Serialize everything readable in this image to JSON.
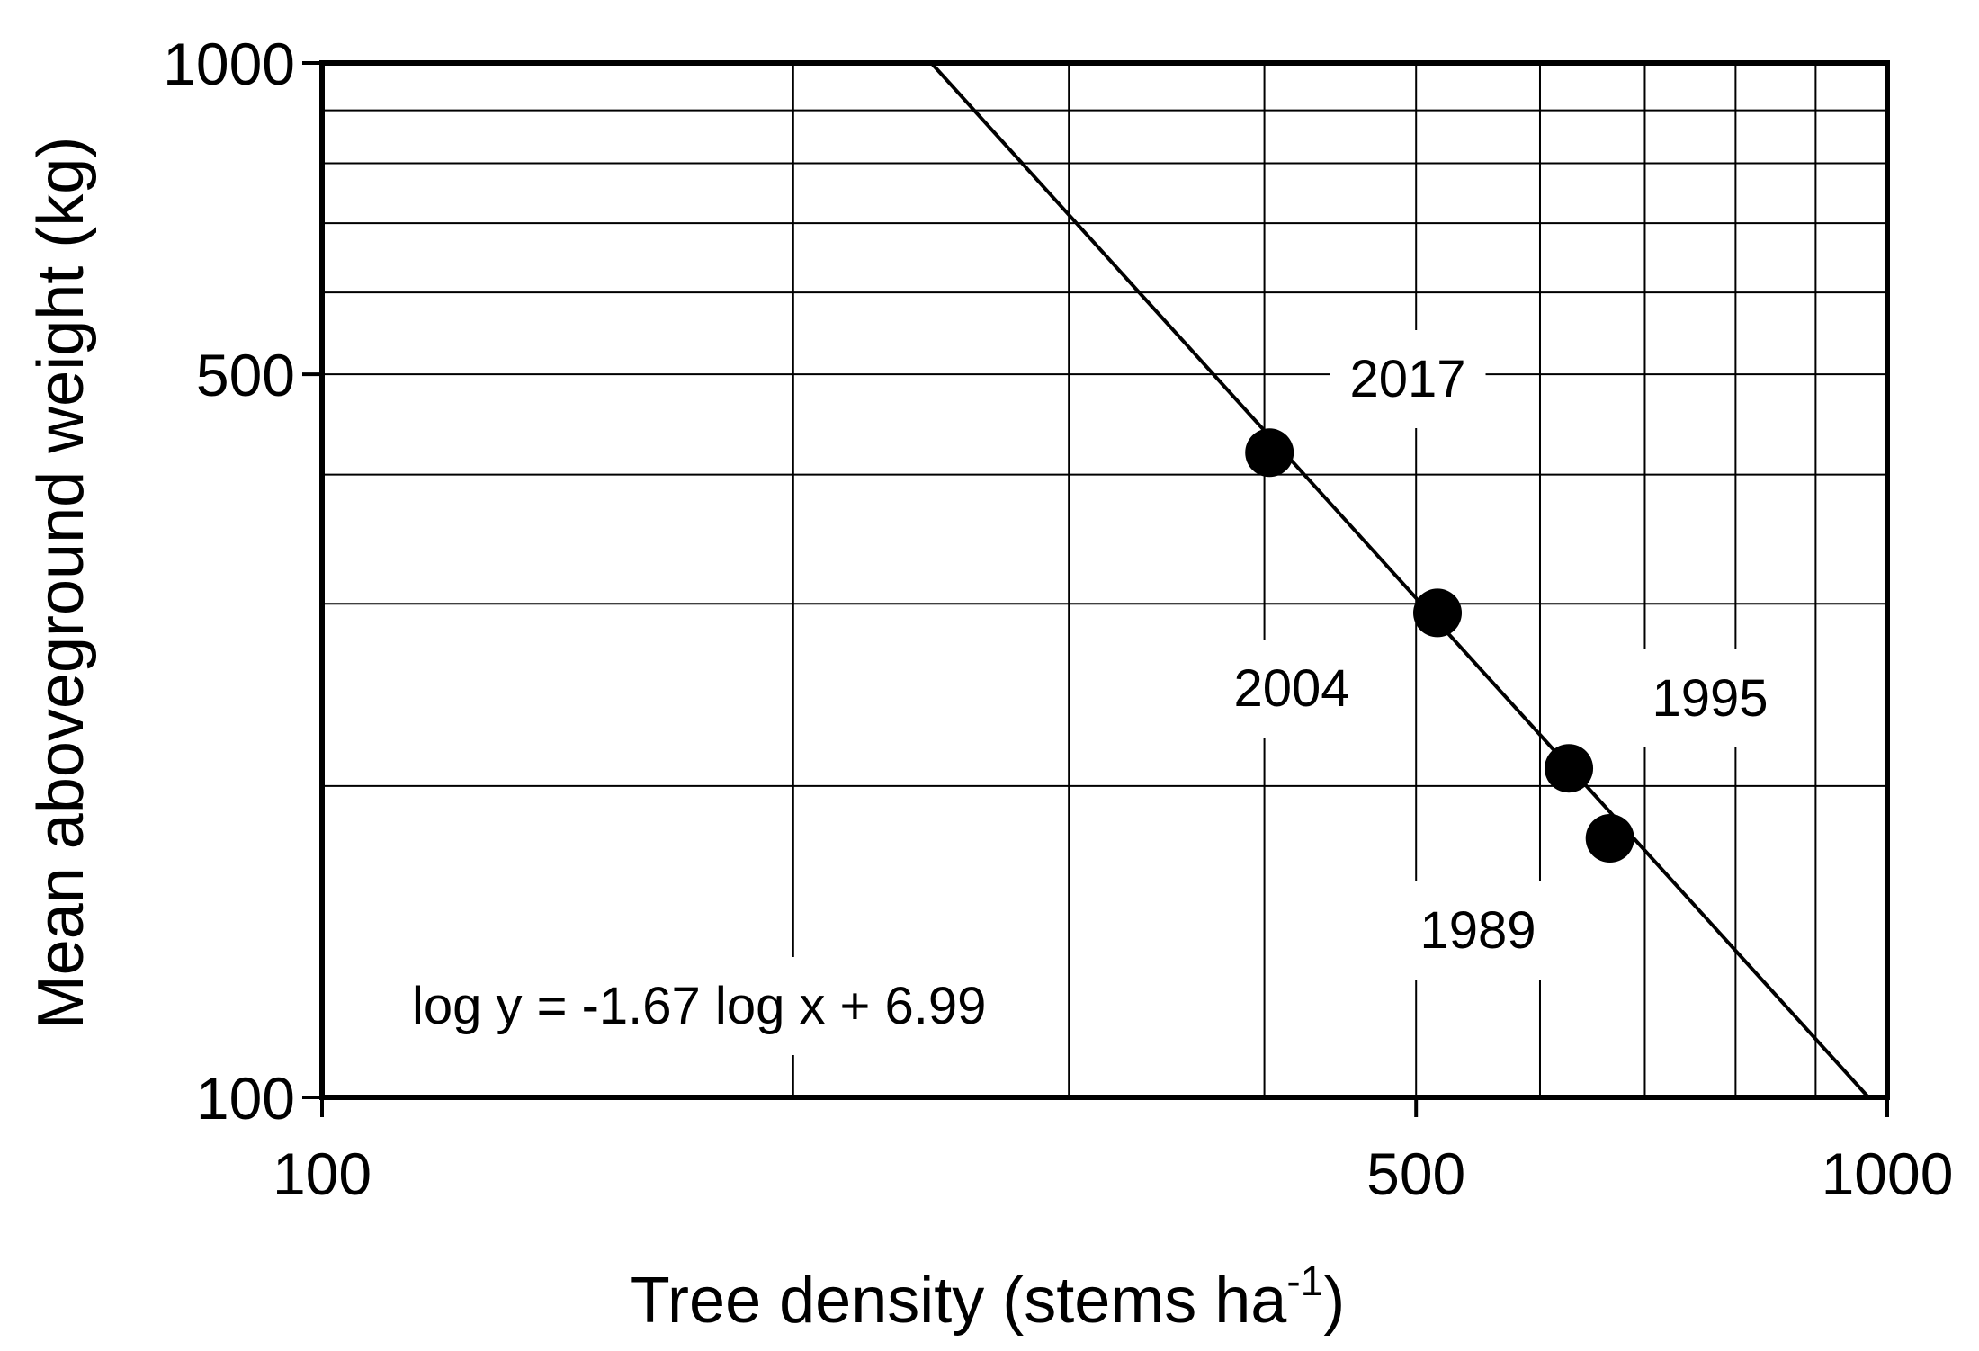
{
  "chart_data": {
    "type": "scatter",
    "title": "",
    "xlabel": "Tree density (stems ha",
    "xlabel_sup": "-1",
    "xlabel_close": ")",
    "ylabel": "Mean aboveground weight (kg)",
    "x_scale": "log",
    "y_scale": "log",
    "xlim": [
      100,
      1000
    ],
    "ylim": [
      100,
      1000
    ],
    "x_ticks": [
      {
        "value": 100,
        "label": "100"
      },
      {
        "value": 500,
        "label": "500"
      },
      {
        "value": 1000,
        "label": "1000"
      }
    ],
    "y_ticks": [
      {
        "value": 100,
        "label": "100"
      },
      {
        "value": 500,
        "label": "500"
      },
      {
        "value": 1000,
        "label": "1000"
      }
    ],
    "grid": true,
    "x_gridlines": [
      200,
      300,
      400,
      500,
      600,
      700,
      800,
      900
    ],
    "y_gridlines": [
      200,
      300,
      400,
      500,
      600,
      700,
      800,
      900
    ],
    "points": [
      {
        "year": "2017",
        "x": 403,
        "y": 420
      },
      {
        "year": "2004",
        "x": 516,
        "y": 294
      },
      {
        "year": "1995",
        "x": 626,
        "y": 208
      },
      {
        "year": "1989",
        "x": 665,
        "y": 178
      }
    ],
    "fit_line": {
      "equation": "log y = -1.67 log x + 6.99",
      "slope": -1.67,
      "intercept": 6.99
    }
  }
}
